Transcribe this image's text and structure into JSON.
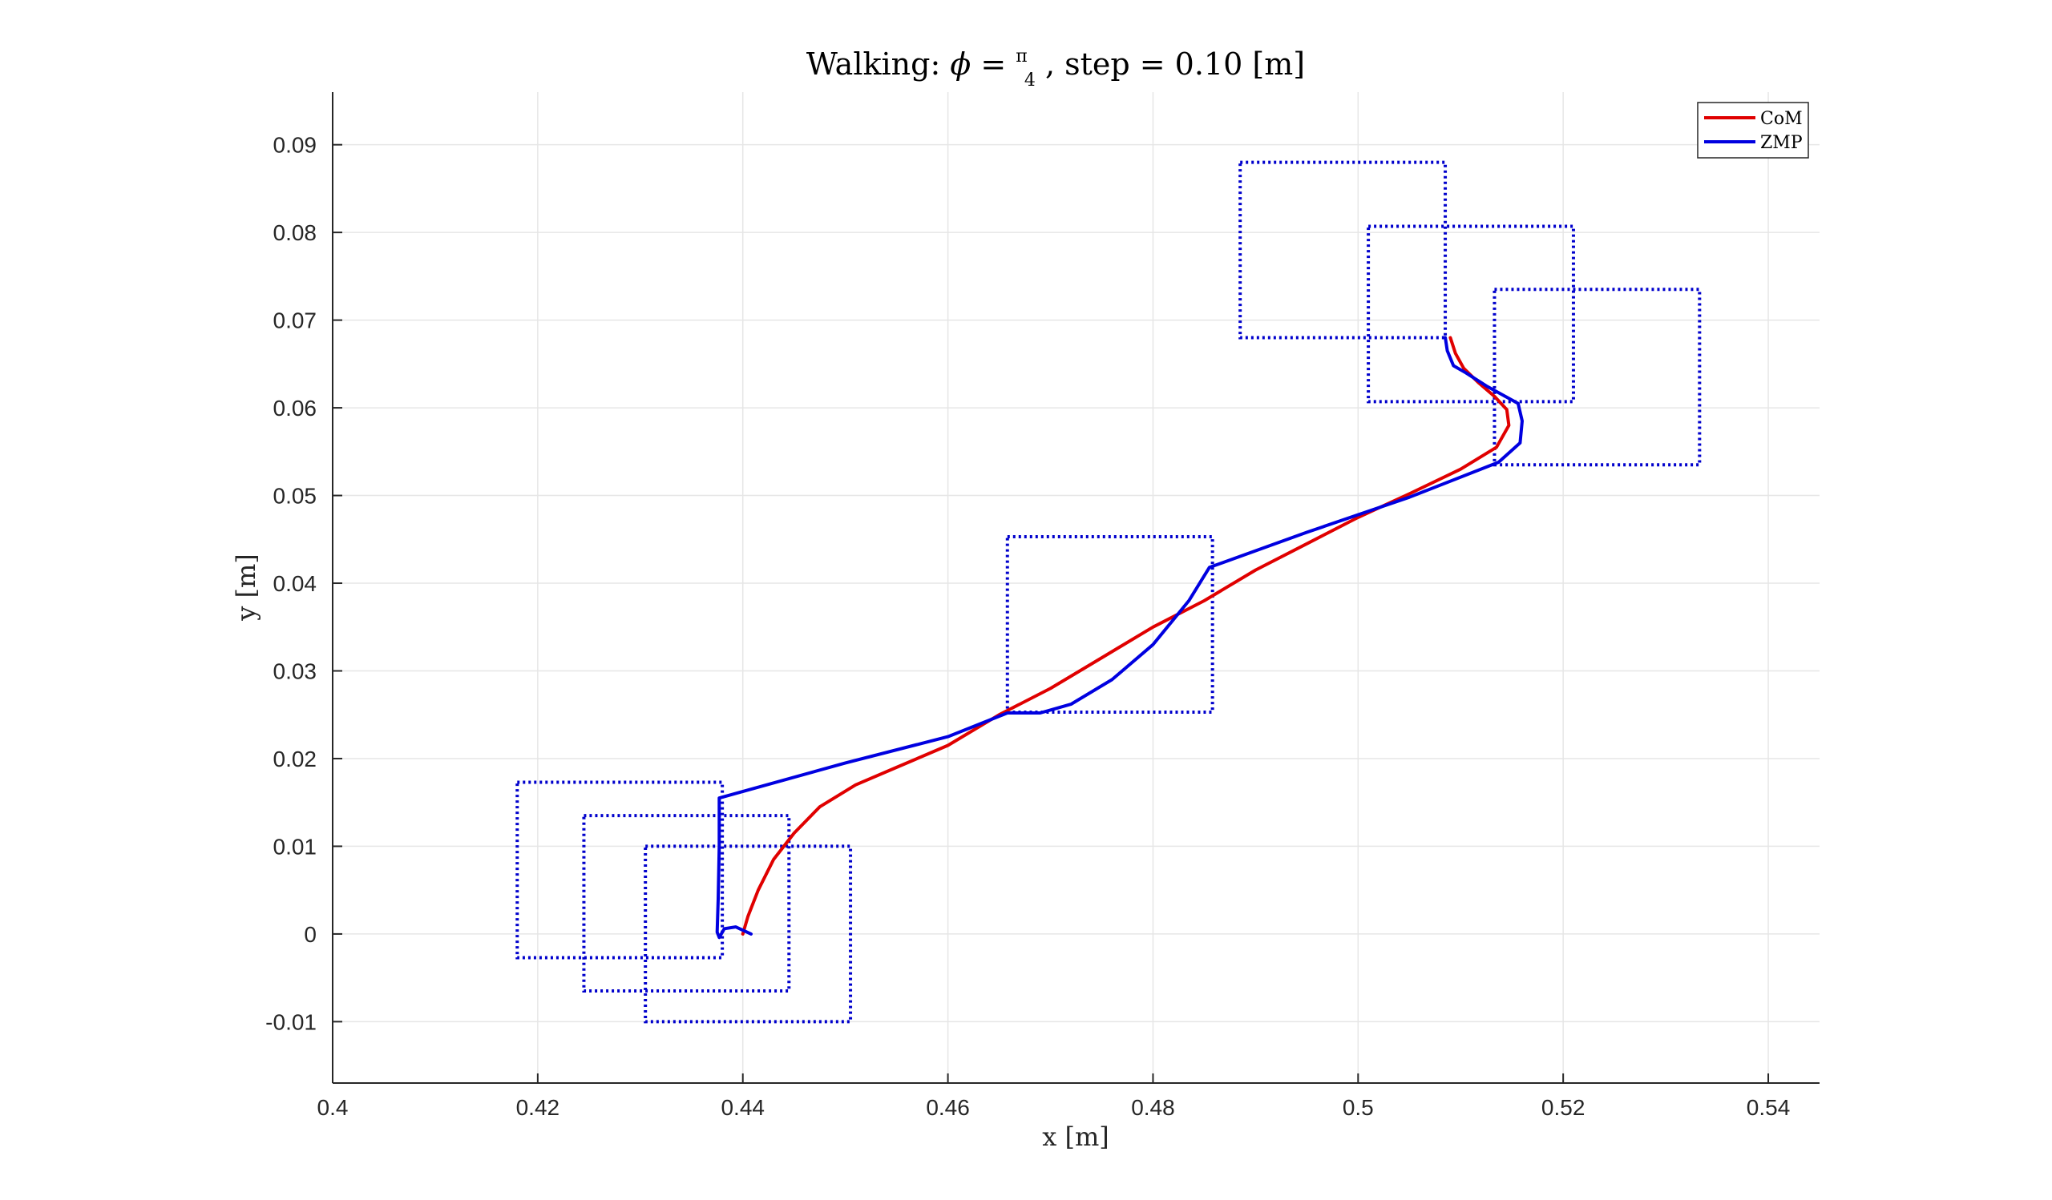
{
  "chart_data": {
    "type": "line",
    "title": {
      "prefix": "Walking: ",
      "phi_symbol": "ϕ",
      "equals": " = ",
      "pi_num": "π",
      "pi_den": "4",
      "suffix": ", step = 0.10 [m]"
    },
    "xlabel": "x [m]",
    "ylabel": "y [m]",
    "xlim": [
      0.4,
      0.545
    ],
    "ylim": [
      -0.017,
      0.096
    ],
    "xticks": [
      0.4,
      0.42,
      0.44,
      0.46,
      0.48,
      0.5,
      0.52,
      0.54
    ],
    "xtick_labels": [
      "0.4",
      "0.42",
      "0.44",
      "0.46",
      "0.48",
      "0.5",
      "0.52",
      "0.54"
    ],
    "yticks": [
      -0.01,
      0,
      0.01,
      0.02,
      0.03,
      0.04,
      0.05,
      0.06,
      0.07,
      0.08,
      0.09
    ],
    "ytick_labels": [
      "-0.01",
      "0",
      "0.01",
      "0.02",
      "0.03",
      "0.04",
      "0.05",
      "0.06",
      "0.07",
      "0.08",
      "0.09"
    ],
    "grid": true,
    "legend_position": "top-right",
    "series": [
      {
        "name": "CoM",
        "color": "#e00000",
        "points": [
          [
            0.44,
            0.0
          ],
          [
            0.4405,
            0.002
          ],
          [
            0.4415,
            0.005
          ],
          [
            0.443,
            0.0085
          ],
          [
            0.445,
            0.0115
          ],
          [
            0.4475,
            0.0145
          ],
          [
            0.451,
            0.017
          ],
          [
            0.455,
            0.019
          ],
          [
            0.46,
            0.0215
          ],
          [
            0.465,
            0.025
          ],
          [
            0.47,
            0.028
          ],
          [
            0.475,
            0.0315
          ],
          [
            0.48,
            0.035
          ],
          [
            0.485,
            0.038
          ],
          [
            0.49,
            0.0415
          ],
          [
            0.495,
            0.0445
          ],
          [
            0.5,
            0.0475
          ],
          [
            0.505,
            0.0502
          ],
          [
            0.51,
            0.053
          ],
          [
            0.5135,
            0.0555
          ],
          [
            0.5147,
            0.058
          ],
          [
            0.5145,
            0.0598
          ],
          [
            0.5133,
            0.0613
          ],
          [
            0.5118,
            0.0628
          ],
          [
            0.5103,
            0.0645
          ],
          [
            0.5095,
            0.0662
          ],
          [
            0.509,
            0.068
          ]
        ]
      },
      {
        "name": "ZMP",
        "color": "#0000e0",
        "points": [
          [
            0.4408,
            0.0
          ],
          [
            0.4393,
            0.0008
          ],
          [
            0.4382,
            0.0006
          ],
          [
            0.4377,
            -0.0004
          ],
          [
            0.4375,
            0.0002
          ],
          [
            0.4376,
            0.004
          ],
          [
            0.4377,
            0.01
          ],
          [
            0.4377,
            0.0155
          ],
          [
            0.45,
            0.0195
          ],
          [
            0.46,
            0.0225
          ],
          [
            0.4658,
            0.0252
          ],
          [
            0.469,
            0.0252
          ],
          [
            0.472,
            0.0262
          ],
          [
            0.476,
            0.029
          ],
          [
            0.48,
            0.033
          ],
          [
            0.4835,
            0.038
          ],
          [
            0.4855,
            0.0418
          ],
          [
            0.495,
            0.0458
          ],
          [
            0.505,
            0.0498
          ],
          [
            0.5137,
            0.0538
          ],
          [
            0.5158,
            0.056
          ],
          [
            0.516,
            0.0585
          ],
          [
            0.5156,
            0.0605
          ],
          [
            0.5125,
            0.0625
          ],
          [
            0.5105,
            0.064
          ],
          [
            0.5093,
            0.0648
          ],
          [
            0.5087,
            0.0665
          ],
          [
            0.5085,
            0.068
          ]
        ]
      }
    ],
    "footprints": {
      "color": "#0000cc",
      "style": "dotted",
      "rects": [
        {
          "x0": 0.418,
          "x1": 0.438,
          "y0": -0.0027,
          "y1": 0.0173
        },
        {
          "x0": 0.4245,
          "x1": 0.4445,
          "y0": -0.0065,
          "y1": 0.0135
        },
        {
          "x0": 0.4305,
          "x1": 0.4505,
          "y0": -0.01,
          "y1": 0.01
        },
        {
          "x0": 0.4658,
          "x1": 0.4858,
          "y0": 0.0253,
          "y1": 0.0453
        },
        {
          "x0": 0.4885,
          "x1": 0.5085,
          "y0": 0.068,
          "y1": 0.088
        },
        {
          "x0": 0.501,
          "x1": 0.521,
          "y0": 0.0607,
          "y1": 0.0807
        },
        {
          "x0": 0.5133,
          "x1": 0.5333,
          "y0": 0.0535,
          "y1": 0.0735
        }
      ]
    }
  }
}
